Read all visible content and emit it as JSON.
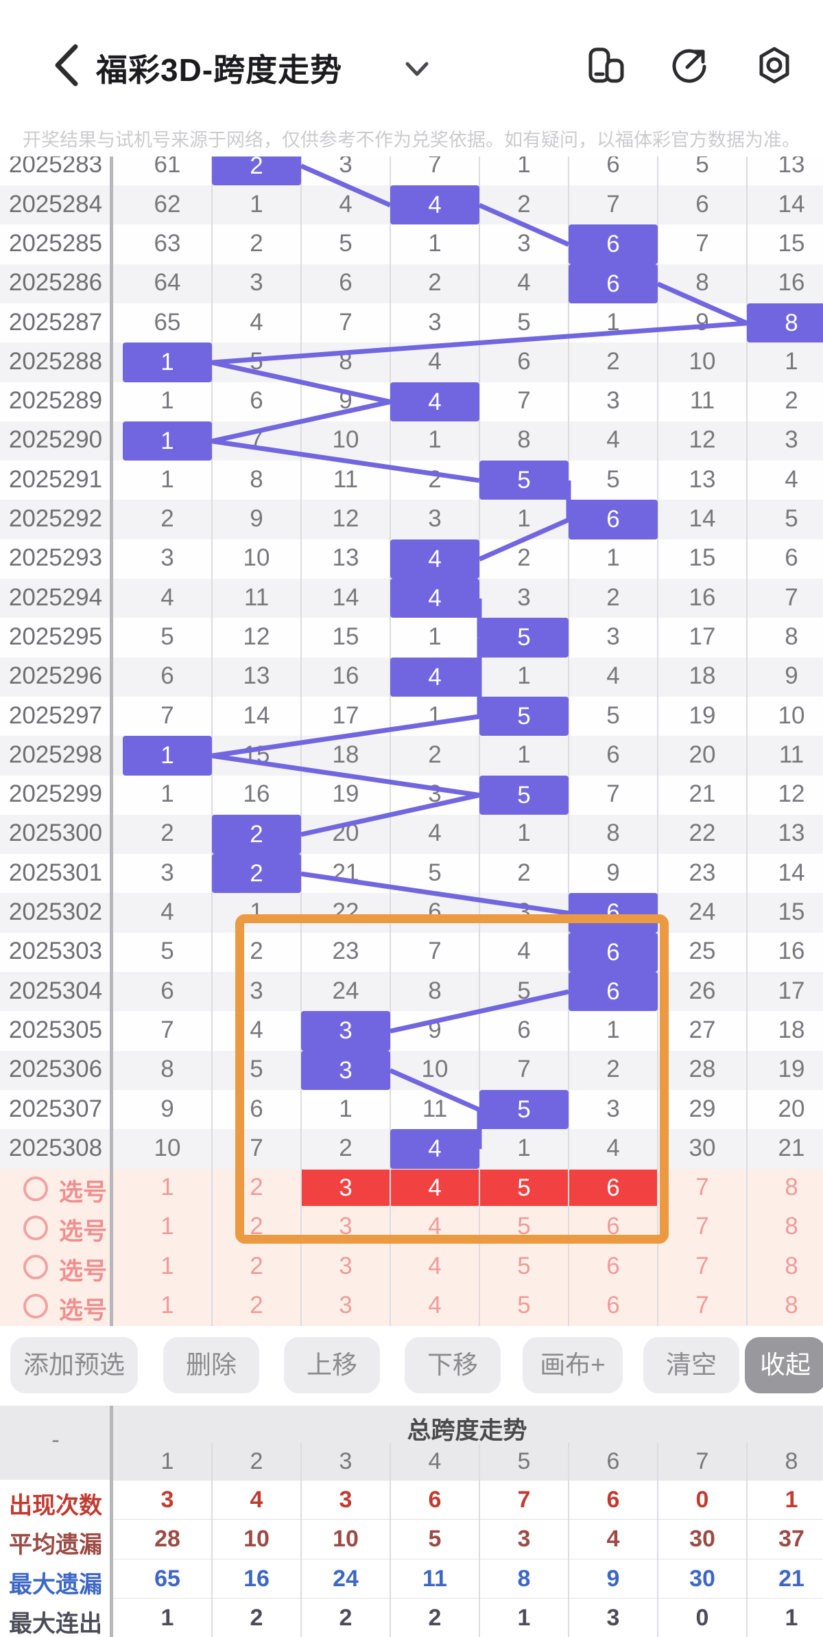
{
  "header": {
    "title": "福彩3D-跨度走势",
    "icons": [
      "back-icon",
      "chevron-down-icon",
      "window-switch-icon",
      "share-icon",
      "settings-icon"
    ]
  },
  "disclaimer": "开奖结果与试机号来源于网络，仅供参考不作为兑奖依据。如有疑问，以福体彩官方数据为准。",
  "trend": {
    "columns": [
      1,
      2,
      3,
      4,
      5,
      6,
      7,
      8
    ],
    "rows": [
      {
        "period": "2025283",
        "cells": [
          61,
          2,
          3,
          7,
          1,
          6,
          5,
          13
        ],
        "hit": 1
      },
      {
        "period": "2025284",
        "cells": [
          62,
          1,
          4,
          4,
          2,
          7,
          6,
          14
        ],
        "hit": 3
      },
      {
        "period": "2025285",
        "cells": [
          63,
          2,
          5,
          1,
          3,
          6,
          7,
          15
        ],
        "hit": 5
      },
      {
        "period": "2025286",
        "cells": [
          64,
          3,
          6,
          2,
          4,
          6,
          8,
          16
        ],
        "hit": 5
      },
      {
        "period": "2025287",
        "cells": [
          65,
          4,
          7,
          3,
          5,
          1,
          9,
          8
        ],
        "hit": 7
      },
      {
        "period": "2025288",
        "cells": [
          1,
          5,
          8,
          4,
          6,
          2,
          10,
          1
        ],
        "hit": 0
      },
      {
        "period": "2025289",
        "cells": [
          1,
          6,
          9,
          4,
          7,
          3,
          11,
          2
        ],
        "hit": 3
      },
      {
        "period": "2025290",
        "cells": [
          1,
          7,
          10,
          1,
          8,
          4,
          12,
          3
        ],
        "hit": 0
      },
      {
        "period": "2025291",
        "cells": [
          1,
          8,
          11,
          2,
          5,
          5,
          13,
          4
        ],
        "hit": 4
      },
      {
        "period": "2025292",
        "cells": [
          2,
          9,
          12,
          3,
          1,
          6,
          14,
          5
        ],
        "hit": 5
      },
      {
        "period": "2025293",
        "cells": [
          3,
          10,
          13,
          4,
          2,
          1,
          15,
          6
        ],
        "hit": 3
      },
      {
        "period": "2025294",
        "cells": [
          4,
          11,
          14,
          4,
          3,
          2,
          16,
          7
        ],
        "hit": 3
      },
      {
        "period": "2025295",
        "cells": [
          5,
          12,
          15,
          1,
          5,
          3,
          17,
          8
        ],
        "hit": 4
      },
      {
        "period": "2025296",
        "cells": [
          6,
          13,
          16,
          4,
          1,
          4,
          18,
          9
        ],
        "hit": 3
      },
      {
        "period": "2025297",
        "cells": [
          7,
          14,
          17,
          1,
          5,
          5,
          19,
          10
        ],
        "hit": 4
      },
      {
        "period": "2025298",
        "cells": [
          1,
          15,
          18,
          2,
          1,
          6,
          20,
          11
        ],
        "hit": 0
      },
      {
        "period": "2025299",
        "cells": [
          1,
          16,
          19,
          3,
          5,
          7,
          21,
          12
        ],
        "hit": 4
      },
      {
        "period": "2025300",
        "cells": [
          2,
          2,
          20,
          4,
          1,
          8,
          22,
          13
        ],
        "hit": 1
      },
      {
        "period": "2025301",
        "cells": [
          3,
          2,
          21,
          5,
          2,
          9,
          23,
          14
        ],
        "hit": 1
      },
      {
        "period": "2025302",
        "cells": [
          4,
          1,
          22,
          6,
          3,
          6,
          24,
          15
        ],
        "hit": 5
      },
      {
        "period": "2025303",
        "cells": [
          5,
          2,
          23,
          7,
          4,
          6,
          25,
          16
        ],
        "hit": 5
      },
      {
        "period": "2025304",
        "cells": [
          6,
          3,
          24,
          8,
          5,
          6,
          26,
          17
        ],
        "hit": 5
      },
      {
        "period": "2025305",
        "cells": [
          7,
          4,
          3,
          9,
          6,
          1,
          27,
          18
        ],
        "hit": 2
      },
      {
        "period": "2025306",
        "cells": [
          8,
          5,
          3,
          10,
          7,
          2,
          28,
          19
        ],
        "hit": 2
      },
      {
        "period": "2025307",
        "cells": [
          9,
          6,
          1,
          11,
          5,
          3,
          29,
          20
        ],
        "hit": 4
      },
      {
        "period": "2025308",
        "cells": [
          10,
          7,
          2,
          4,
          1,
          4,
          30,
          21
        ],
        "hit": 3
      }
    ],
    "selection_rows": [
      {
        "label": "选号",
        "values": [
          1,
          2,
          3,
          4,
          5,
          6,
          7,
          8
        ],
        "selected": [
          3,
          4,
          5,
          6
        ]
      },
      {
        "label": "选号",
        "values": [
          1,
          2,
          3,
          4,
          5,
          6,
          7,
          8
        ],
        "selected": []
      },
      {
        "label": "选号",
        "values": [
          1,
          2,
          3,
          4,
          5,
          6,
          7,
          8
        ],
        "selected": []
      },
      {
        "label": "选号",
        "values": [
          1,
          2,
          3,
          4,
          5,
          6,
          7,
          8
        ],
        "selected": []
      }
    ]
  },
  "toolbar": {
    "buttons": [
      "添加预选",
      "删除",
      "上移",
      "下移",
      "画布+",
      "清空",
      "收起"
    ],
    "active_button": "收起"
  },
  "stats": {
    "corner": "-",
    "title": "总跨度走势",
    "columns": [
      "1",
      "2",
      "3",
      "4",
      "5",
      "6",
      "7",
      "8"
    ],
    "rows": [
      {
        "label": "出现次数",
        "values": [
          3,
          4,
          3,
          6,
          7,
          6,
          0,
          1
        ],
        "color": "#c23a30"
      },
      {
        "label": "平均遗漏",
        "values": [
          28,
          10,
          10,
          5,
          3,
          4,
          30,
          37
        ],
        "color": "#9c4a44"
      },
      {
        "label": "最大遗漏",
        "values": [
          65,
          16,
          24,
          11,
          8,
          9,
          30,
          21
        ],
        "color": "#3d67c6"
      },
      {
        "label": "最大连出",
        "values": [
          1,
          2,
          2,
          2,
          1,
          3,
          0,
          1
        ],
        "color": "#4c4c58"
      }
    ]
  },
  "colors": {
    "hit_purple": "#7166e0",
    "selection_red": "#f14141",
    "annotation_orange": "#ec9a41",
    "selection_bg_pink": "#fdefe8"
  }
}
